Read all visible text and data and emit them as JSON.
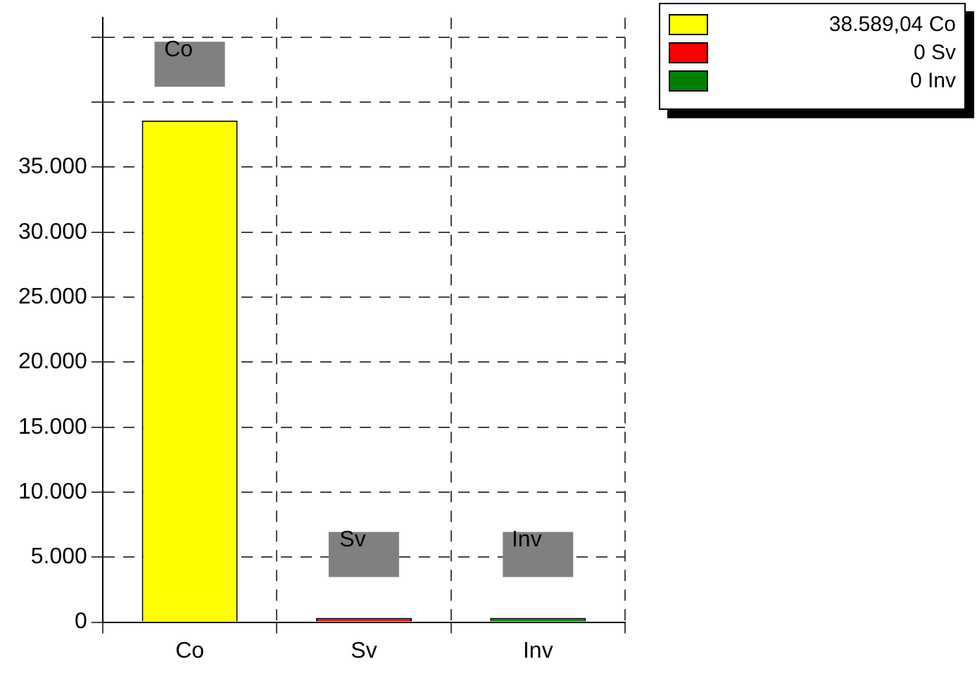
{
  "chart_data": {
    "type": "bar",
    "categories": [
      "Co",
      "Sv",
      "Inv"
    ],
    "stacked": true,
    "series": [
      {
        "name": "38.589,04 Co",
        "color": "#ffff00",
        "values": [
          38589.04,
          null,
          null
        ]
      },
      {
        "name": "0 Sv",
        "color": "#ff0000",
        "values": [
          null,
          0,
          null
        ]
      },
      {
        "name": "0 Inv",
        "color": "#008000",
        "values": [
          null,
          null,
          0
        ]
      }
    ],
    "ylim": [
      0,
      46500
    ],
    "yticks": [
      {
        "value": 0,
        "label": "0"
      },
      {
        "value": 5000,
        "label": "5.000"
      },
      {
        "value": 10000,
        "label": "10.000"
      },
      {
        "value": 15000,
        "label": "15.000"
      },
      {
        "value": 20000,
        "label": "20.000"
      },
      {
        "value": 25000,
        "label": "25.000"
      },
      {
        "value": 30000,
        "label": "30.000"
      },
      {
        "value": 35000,
        "label": "35.000"
      },
      {
        "value": 40000,
        "label": null
      },
      {
        "value": 45000,
        "label": null
      }
    ],
    "annotations": [
      "Co",
      "Sv",
      "Inv"
    ],
    "grid": true,
    "legend": "top right"
  }
}
